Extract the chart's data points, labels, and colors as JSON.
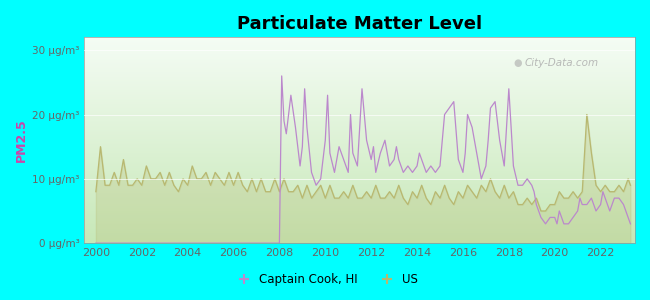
{
  "title": "Particulate Matter Level",
  "ylabel": "PM2.5",
  "ylim": [
    0,
    32
  ],
  "yticks": [
    0,
    10,
    20,
    30
  ],
  "ytick_labels": [
    "0 μg/m³",
    "10 μg/m³",
    "20 μg/m³",
    "30 μg/m³"
  ],
  "xlim": [
    1999.5,
    2023.5
  ],
  "xticks": [
    2000,
    2002,
    2004,
    2006,
    2008,
    2010,
    2012,
    2014,
    2016,
    2018,
    2020,
    2022
  ],
  "background_color": "#00FFFF",
  "plot_bg_top": "#f0f8f0",
  "plot_bg_bottom": "#c8e8b8",
  "city_line_color": "#bb88cc",
  "us_line_color": "#b8b870",
  "city_label": "Captain Cook, HI",
  "us_label": "US",
  "watermark": "City-Data.com",
  "city_data_x": [
    2000,
    2000.2,
    2000.4,
    2000.6,
    2000.8,
    2001,
    2001.2,
    2001.4,
    2001.6,
    2001.8,
    2002,
    2002.2,
    2002.4,
    2002.6,
    2002.8,
    2003,
    2003.2,
    2003.4,
    2003.6,
    2003.8,
    2004,
    2004.2,
    2004.4,
    2004.6,
    2004.8,
    2005,
    2005.2,
    2005.4,
    2005.6,
    2005.8,
    2006,
    2006.2,
    2006.4,
    2006.6,
    2006.8,
    2007,
    2007.2,
    2007.4,
    2007.6,
    2007.8,
    2008,
    2008.1,
    2008.2,
    2008.3,
    2008.5,
    2008.7,
    2008.9,
    2009.0,
    2009.1,
    2009.2,
    2009.4,
    2009.6,
    2009.8,
    2010.0,
    2010.1,
    2010.2,
    2010.4,
    2010.6,
    2010.8,
    2011.0,
    2011.1,
    2011.2,
    2011.4,
    2011.6,
    2011.8,
    2012.0,
    2012.1,
    2012.2,
    2012.4,
    2012.6,
    2012.8,
    2013.0,
    2013.1,
    2013.2,
    2013.4,
    2013.6,
    2013.8,
    2014.0,
    2014.1,
    2014.2,
    2014.4,
    2014.6,
    2014.8,
    2015.0,
    2015.1,
    2015.2,
    2015.4,
    2015.6,
    2015.8,
    2016.0,
    2016.1,
    2016.2,
    2016.4,
    2016.6,
    2016.8,
    2017.0,
    2017.1,
    2017.2,
    2017.4,
    2017.6,
    2017.8,
    2018.0,
    2018.1,
    2018.2,
    2018.4,
    2018.6,
    2018.8,
    2019.0,
    2019.1,
    2019.2,
    2019.4,
    2019.6,
    2019.8,
    2020.0,
    2020.1,
    2020.2,
    2020.4,
    2020.6,
    2020.8,
    2021.0,
    2021.1,
    2021.2,
    2021.4,
    2021.6,
    2021.8,
    2022.0,
    2022.1,
    2022.2,
    2022.4,
    2022.6,
    2022.8,
    2023.0,
    2023.2,
    2023.3
  ],
  "city_data_y": [
    0,
    0,
    0,
    0,
    0,
    0,
    0,
    0,
    0,
    0,
    0,
    0,
    0,
    0,
    0,
    0,
    0,
    0,
    0,
    0,
    0,
    0,
    0,
    0,
    0,
    0,
    0,
    0,
    0,
    0,
    0,
    0,
    0,
    0,
    0,
    0,
    0,
    0,
    0,
    0,
    0,
    26,
    19,
    17,
    23,
    18,
    12,
    15,
    24,
    18,
    11,
    9,
    10,
    16,
    23,
    14,
    11,
    15,
    13,
    11,
    20,
    14,
    12,
    24,
    16,
    13,
    15,
    11,
    14,
    16,
    12,
    13,
    15,
    13,
    11,
    12,
    11,
    12,
    14,
    13,
    11,
    12,
    11,
    12,
    16,
    20,
    21,
    22,
    13,
    11,
    14,
    20,
    18,
    14,
    10,
    12,
    16,
    21,
    22,
    16,
    12,
    24,
    18,
    12,
    9,
    9,
    10,
    9,
    8,
    6,
    4,
    3,
    4,
    4,
    3,
    5,
    3,
    3,
    4,
    5,
    7,
    6,
    6,
    7,
    5,
    6,
    8,
    7,
    5,
    7,
    7,
    6,
    4,
    3
  ],
  "us_data_x": [
    2000,
    2000.2,
    2000.4,
    2000.6,
    2000.8,
    2001,
    2001.2,
    2001.4,
    2001.6,
    2001.8,
    2002,
    2002.2,
    2002.4,
    2002.6,
    2002.8,
    2003,
    2003.2,
    2003.4,
    2003.6,
    2003.8,
    2004,
    2004.2,
    2004.4,
    2004.6,
    2004.8,
    2005,
    2005.2,
    2005.4,
    2005.6,
    2005.8,
    2006,
    2006.2,
    2006.4,
    2006.6,
    2006.8,
    2007,
    2007.2,
    2007.4,
    2007.6,
    2007.8,
    2008,
    2008.2,
    2008.4,
    2008.6,
    2008.8,
    2009,
    2009.2,
    2009.4,
    2009.6,
    2009.8,
    2010,
    2010.2,
    2010.4,
    2010.6,
    2010.8,
    2011,
    2011.2,
    2011.4,
    2011.6,
    2011.8,
    2012,
    2012.2,
    2012.4,
    2012.6,
    2012.8,
    2013,
    2013.2,
    2013.4,
    2013.6,
    2013.8,
    2014,
    2014.2,
    2014.4,
    2014.6,
    2014.8,
    2015,
    2015.2,
    2015.4,
    2015.6,
    2015.8,
    2016,
    2016.2,
    2016.4,
    2016.6,
    2016.8,
    2017,
    2017.2,
    2017.4,
    2017.6,
    2017.8,
    2018,
    2018.2,
    2018.4,
    2018.6,
    2018.8,
    2019,
    2019.2,
    2019.4,
    2019.6,
    2019.8,
    2020,
    2020.2,
    2020.4,
    2020.6,
    2020.8,
    2021,
    2021.2,
    2021.4,
    2021.6,
    2021.8,
    2022,
    2022.2,
    2022.4,
    2022.6,
    2022.8,
    2023,
    2023.2,
    2023.3
  ],
  "us_data_y": [
    8,
    15,
    9,
    9,
    11,
    9,
    13,
    9,
    9,
    10,
    9,
    12,
    10,
    10,
    11,
    9,
    11,
    9,
    8,
    10,
    9,
    12,
    10,
    10,
    11,
    9,
    11,
    10,
    9,
    11,
    9,
    11,
    9,
    8,
    10,
    8,
    10,
    8,
    8,
    10,
    8,
    10,
    8,
    8,
    9,
    7,
    9,
    7,
    8,
    9,
    7,
    9,
    7,
    7,
    8,
    7,
    9,
    7,
    7,
    8,
    7,
    9,
    7,
    7,
    8,
    7,
    9,
    7,
    6,
    8,
    7,
    9,
    7,
    6,
    8,
    7,
    9,
    7,
    6,
    8,
    7,
    9,
    8,
    7,
    9,
    8,
    10,
    8,
    7,
    9,
    7,
    8,
    6,
    6,
    7,
    6,
    7,
    5,
    5,
    6,
    6,
    8,
    7,
    7,
    8,
    7,
    8,
    20,
    14,
    9,
    8,
    9,
    8,
    8,
    9,
    8,
    10,
    9
  ]
}
